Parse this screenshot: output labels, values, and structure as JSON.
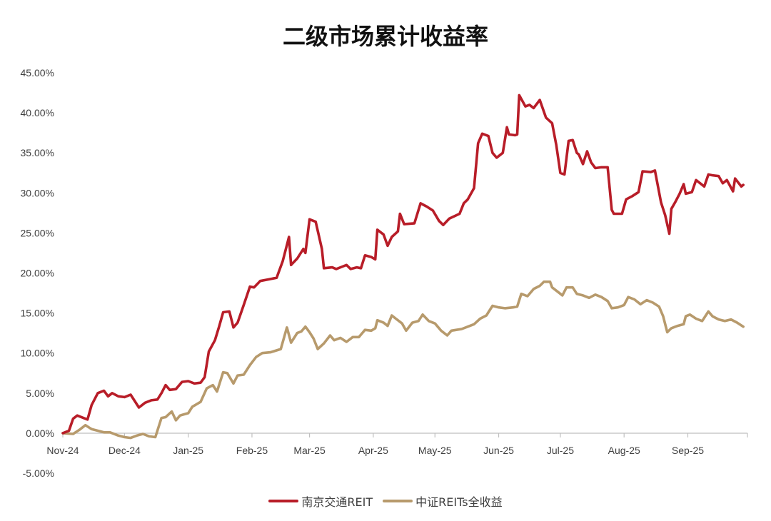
{
  "chart_data": {
    "type": "line",
    "title": "二级市场累计收益率",
    "xlabel": "",
    "ylabel": "",
    "x_ticks": [
      "Nov-24",
      "Dec-24",
      "Jan-25",
      "Feb-25",
      "Mar-25",
      "Apr-25",
      "May-25",
      "Jun-25",
      "Jul-25",
      "Aug-25",
      "Sep-25"
    ],
    "x_range": [
      "2024-11-01",
      "2025-09-30"
    ],
    "y_ticks": [
      "45.00%",
      "40.00%",
      "35.00%",
      "30.00%",
      "25.00%",
      "20.00%",
      "15.00%",
      "10.00%",
      "5.00%",
      "0.00%",
      "-5.00%"
    ],
    "ylim": [
      -5,
      45
    ],
    "grid": false,
    "legend_position": "bottom",
    "series": [
      {
        "name": "南京交通REIT",
        "color": "#B81D28",
        "points": [
          [
            "2024-11-01",
            0.0
          ],
          [
            "2024-11-04",
            0.3
          ],
          [
            "2024-11-06",
            1.8
          ],
          [
            "2024-11-08",
            2.2
          ],
          [
            "2024-11-11",
            1.9
          ],
          [
            "2024-11-13",
            1.7
          ],
          [
            "2024-11-15",
            3.5
          ],
          [
            "2024-11-18",
            5.0
          ],
          [
            "2024-11-21",
            5.3
          ],
          [
            "2024-11-23",
            4.6
          ],
          [
            "2024-11-25",
            5.0
          ],
          [
            "2024-11-28",
            4.6
          ],
          [
            "2024-12-01",
            4.5
          ],
          [
            "2024-12-04",
            4.8
          ],
          [
            "2024-12-06",
            4.0
          ],
          [
            "2024-12-08",
            3.2
          ],
          [
            "2024-12-11",
            3.8
          ],
          [
            "2024-12-14",
            4.1
          ],
          [
            "2024-12-17",
            4.2
          ],
          [
            "2024-12-19",
            5.0
          ],
          [
            "2024-12-21",
            6.0
          ],
          [
            "2024-12-23",
            5.4
          ],
          [
            "2024-12-26",
            5.5
          ],
          [
            "2024-12-29",
            6.4
          ],
          [
            "2025-01-01",
            6.5
          ],
          [
            "2025-01-04",
            6.2
          ],
          [
            "2025-01-07",
            6.3
          ],
          [
            "2025-01-09",
            7.0
          ],
          [
            "2025-01-11",
            10.2
          ],
          [
            "2025-01-14",
            11.6
          ],
          [
            "2025-01-16",
            13.3
          ],
          [
            "2025-01-18",
            15.1
          ],
          [
            "2025-01-21",
            15.2
          ],
          [
            "2025-01-23",
            13.2
          ],
          [
            "2025-01-25",
            13.8
          ],
          [
            "2025-01-28",
            16.0
          ],
          [
            "2025-01-31",
            18.3
          ],
          [
            "2025-02-02",
            18.2
          ],
          [
            "2025-02-05",
            19.0
          ],
          [
            "2025-02-09",
            19.2
          ],
          [
            "2025-02-13",
            19.4
          ],
          [
            "2025-02-16",
            21.5
          ],
          [
            "2025-02-19",
            24.5
          ],
          [
            "2025-02-20",
            21.0
          ],
          [
            "2025-02-23",
            21.8
          ],
          [
            "2025-02-26",
            23.0
          ],
          [
            "2025-02-27",
            22.5
          ],
          [
            "2025-03-01",
            26.7
          ],
          [
            "2025-03-04",
            26.4
          ],
          [
            "2025-03-07",
            23.0
          ],
          [
            "2025-03-08",
            20.6
          ],
          [
            "2025-03-12",
            20.7
          ],
          [
            "2025-03-14",
            20.5
          ],
          [
            "2025-03-17",
            20.8
          ],
          [
            "2025-03-19",
            21.0
          ],
          [
            "2025-03-21",
            20.5
          ],
          [
            "2025-03-24",
            20.7
          ],
          [
            "2025-03-26",
            20.6
          ],
          [
            "2025-03-28",
            22.2
          ],
          [
            "2025-03-31",
            22.0
          ],
          [
            "2025-04-02",
            21.7
          ],
          [
            "2025-04-03",
            25.4
          ],
          [
            "2025-04-06",
            24.8
          ],
          [
            "2025-04-08",
            23.4
          ],
          [
            "2025-04-10",
            24.5
          ],
          [
            "2025-04-13",
            25.2
          ],
          [
            "2025-04-14",
            27.4
          ],
          [
            "2025-04-16",
            26.1
          ],
          [
            "2025-04-21",
            26.2
          ],
          [
            "2025-04-24",
            28.7
          ],
          [
            "2025-04-27",
            28.3
          ],
          [
            "2025-04-30",
            27.8
          ],
          [
            "2025-05-03",
            26.5
          ],
          [
            "2025-05-05",
            26.0
          ],
          [
            "2025-05-08",
            26.8
          ],
          [
            "2025-05-13",
            27.4
          ],
          [
            "2025-05-15",
            28.7
          ],
          [
            "2025-05-17",
            29.2
          ],
          [
            "2025-05-20",
            30.6
          ],
          [
            "2025-05-22",
            36.2
          ],
          [
            "2025-05-24",
            37.4
          ],
          [
            "2025-05-27",
            37.1
          ],
          [
            "2025-05-29",
            35.0
          ],
          [
            "2025-05-31",
            34.4
          ],
          [
            "2025-06-03",
            35.0
          ],
          [
            "2025-06-05",
            38.2
          ],
          [
            "2025-06-06",
            37.3
          ],
          [
            "2025-06-09",
            37.2
          ],
          [
            "2025-06-10",
            37.3
          ],
          [
            "2025-06-11",
            42.2
          ],
          [
            "2025-06-14",
            40.8
          ],
          [
            "2025-06-16",
            41.0
          ],
          [
            "2025-06-18",
            40.6
          ],
          [
            "2025-06-21",
            41.6
          ],
          [
            "2025-06-24",
            39.4
          ],
          [
            "2025-06-27",
            38.7
          ],
          [
            "2025-06-29",
            36.0
          ],
          [
            "2025-07-01",
            32.5
          ],
          [
            "2025-07-03",
            32.3
          ],
          [
            "2025-07-05",
            36.5
          ],
          [
            "2025-07-07",
            36.6
          ],
          [
            "2025-07-09",
            35.0
          ],
          [
            "2025-07-10",
            34.8
          ],
          [
            "2025-07-12",
            33.6
          ],
          [
            "2025-07-14",
            35.2
          ],
          [
            "2025-07-16",
            33.8
          ],
          [
            "2025-07-18",
            33.1
          ],
          [
            "2025-07-21",
            33.2
          ],
          [
            "2025-07-24",
            33.2
          ],
          [
            "2025-07-26",
            27.9
          ],
          [
            "2025-07-27",
            27.4
          ],
          [
            "2025-07-31",
            27.4
          ],
          [
            "2025-08-02",
            29.2
          ],
          [
            "2025-08-05",
            29.6
          ],
          [
            "2025-08-08",
            30.1
          ],
          [
            "2025-08-10",
            32.7
          ],
          [
            "2025-08-14",
            32.6
          ],
          [
            "2025-08-16",
            32.8
          ],
          [
            "2025-08-19",
            28.8
          ],
          [
            "2025-08-21",
            27.2
          ],
          [
            "2025-08-23",
            24.9
          ],
          [
            "2025-08-24",
            28.0
          ],
          [
            "2025-08-26",
            28.9
          ],
          [
            "2025-08-28",
            29.9
          ],
          [
            "2025-08-30",
            31.1
          ],
          [
            "2025-08-31",
            29.9
          ],
          [
            "2025-09-03",
            30.1
          ],
          [
            "2025-09-05",
            31.6
          ],
          [
            "2025-09-07",
            31.2
          ],
          [
            "2025-09-09",
            30.8
          ],
          [
            "2025-09-11",
            32.3
          ],
          [
            "2025-09-13",
            32.2
          ],
          [
            "2025-09-16",
            32.1
          ],
          [
            "2025-09-18",
            31.2
          ],
          [
            "2025-09-20",
            31.6
          ],
          [
            "2025-09-23",
            30.2
          ],
          [
            "2025-09-24",
            31.8
          ],
          [
            "2025-09-27",
            30.8
          ],
          [
            "2025-09-28",
            31.0
          ]
        ]
      },
      {
        "name": "中证REITs全收益",
        "color": "#B79A6C",
        "points": [
          [
            "2024-11-01",
            0.0
          ],
          [
            "2024-11-06",
            -0.1
          ],
          [
            "2024-11-09",
            0.4
          ],
          [
            "2024-11-12",
            1.0
          ],
          [
            "2024-11-15",
            0.5
          ],
          [
            "2024-11-18",
            0.3
          ],
          [
            "2024-11-21",
            0.1
          ],
          [
            "2024-11-24",
            0.1
          ],
          [
            "2024-11-28",
            -0.3
          ],
          [
            "2024-12-01",
            -0.5
          ],
          [
            "2024-12-04",
            -0.6
          ],
          [
            "2024-12-07",
            -0.3
          ],
          [
            "2024-12-10",
            -0.1
          ],
          [
            "2024-12-13",
            -0.4
          ],
          [
            "2024-12-16",
            -0.5
          ],
          [
            "2024-12-19",
            1.9
          ],
          [
            "2024-12-21",
            2.0
          ],
          [
            "2024-12-24",
            2.7
          ],
          [
            "2024-12-26",
            1.6
          ],
          [
            "2024-12-28",
            2.2
          ],
          [
            "2025-01-01",
            2.5
          ],
          [
            "2025-01-03",
            3.3
          ],
          [
            "2025-01-07",
            3.9
          ],
          [
            "2025-01-10",
            5.6
          ],
          [
            "2025-01-13",
            6.0
          ],
          [
            "2025-01-15",
            5.2
          ],
          [
            "2025-01-18",
            7.6
          ],
          [
            "2025-01-20",
            7.5
          ],
          [
            "2025-01-23",
            6.2
          ],
          [
            "2025-01-25",
            7.2
          ],
          [
            "2025-01-28",
            7.3
          ],
          [
            "2025-01-31",
            8.5
          ],
          [
            "2025-02-03",
            9.5
          ],
          [
            "2025-02-06",
            10.0
          ],
          [
            "2025-02-10",
            10.1
          ],
          [
            "2025-02-15",
            10.5
          ],
          [
            "2025-02-18",
            13.2
          ],
          [
            "2025-02-20",
            11.3
          ],
          [
            "2025-02-23",
            12.5
          ],
          [
            "2025-02-25",
            12.7
          ],
          [
            "2025-02-27",
            13.3
          ],
          [
            "2025-03-01",
            12.6
          ],
          [
            "2025-03-03",
            11.8
          ],
          [
            "2025-03-05",
            10.5
          ],
          [
            "2025-03-08",
            11.2
          ],
          [
            "2025-03-11",
            12.2
          ],
          [
            "2025-03-13",
            11.6
          ],
          [
            "2025-03-16",
            11.9
          ],
          [
            "2025-03-19",
            11.4
          ],
          [
            "2025-03-22",
            12.0
          ],
          [
            "2025-03-25",
            12.0
          ],
          [
            "2025-03-28",
            12.9
          ],
          [
            "2025-03-31",
            12.8
          ],
          [
            "2025-04-02",
            13.1
          ],
          [
            "2025-04-03",
            14.1
          ],
          [
            "2025-04-06",
            13.8
          ],
          [
            "2025-04-08",
            13.4
          ],
          [
            "2025-04-10",
            14.7
          ],
          [
            "2025-04-12",
            14.3
          ],
          [
            "2025-04-15",
            13.7
          ],
          [
            "2025-04-17",
            12.8
          ],
          [
            "2025-04-20",
            13.8
          ],
          [
            "2025-04-23",
            14.0
          ],
          [
            "2025-04-25",
            14.8
          ],
          [
            "2025-04-28",
            14.0
          ],
          [
            "2025-05-01",
            13.7
          ],
          [
            "2025-05-04",
            12.8
          ],
          [
            "2025-05-07",
            12.2
          ],
          [
            "2025-05-09",
            12.8
          ],
          [
            "2025-05-14",
            13.0
          ],
          [
            "2025-05-17",
            13.3
          ],
          [
            "2025-05-20",
            13.6
          ],
          [
            "2025-05-23",
            14.3
          ],
          [
            "2025-05-26",
            14.7
          ],
          [
            "2025-05-29",
            15.9
          ],
          [
            "2025-06-01",
            15.7
          ],
          [
            "2025-06-04",
            15.6
          ],
          [
            "2025-06-08",
            15.7
          ],
          [
            "2025-06-10",
            15.8
          ],
          [
            "2025-06-12",
            17.4
          ],
          [
            "2025-06-15",
            17.1
          ],
          [
            "2025-06-18",
            18.0
          ],
          [
            "2025-06-21",
            18.4
          ],
          [
            "2025-06-23",
            18.9
          ],
          [
            "2025-06-26",
            18.9
          ],
          [
            "2025-06-27",
            18.2
          ],
          [
            "2025-06-30",
            17.6
          ],
          [
            "2025-07-02",
            17.2
          ],
          [
            "2025-07-04",
            18.2
          ],
          [
            "2025-07-07",
            18.2
          ],
          [
            "2025-07-09",
            17.4
          ],
          [
            "2025-07-12",
            17.2
          ],
          [
            "2025-07-15",
            16.9
          ],
          [
            "2025-07-18",
            17.3
          ],
          [
            "2025-07-21",
            17.0
          ],
          [
            "2025-07-24",
            16.5
          ],
          [
            "2025-07-26",
            15.6
          ],
          [
            "2025-07-29",
            15.7
          ],
          [
            "2025-08-01",
            16.0
          ],
          [
            "2025-08-03",
            17.0
          ],
          [
            "2025-08-06",
            16.7
          ],
          [
            "2025-08-09",
            16.1
          ],
          [
            "2025-08-12",
            16.6
          ],
          [
            "2025-08-15",
            16.3
          ],
          [
            "2025-08-18",
            15.8
          ],
          [
            "2025-08-20",
            14.6
          ],
          [
            "2025-08-22",
            12.6
          ],
          [
            "2025-08-24",
            13.1
          ],
          [
            "2025-08-27",
            13.4
          ],
          [
            "2025-08-30",
            13.6
          ],
          [
            "2025-08-31",
            14.6
          ],
          [
            "2025-09-02",
            14.8
          ],
          [
            "2025-09-05",
            14.3
          ],
          [
            "2025-09-08",
            14.0
          ],
          [
            "2025-09-11",
            15.2
          ],
          [
            "2025-09-13",
            14.6
          ],
          [
            "2025-09-16",
            14.2
          ],
          [
            "2025-09-19",
            14.0
          ],
          [
            "2025-09-22",
            14.2
          ],
          [
            "2025-09-25",
            13.8
          ],
          [
            "2025-09-28",
            13.3
          ]
        ]
      }
    ]
  }
}
